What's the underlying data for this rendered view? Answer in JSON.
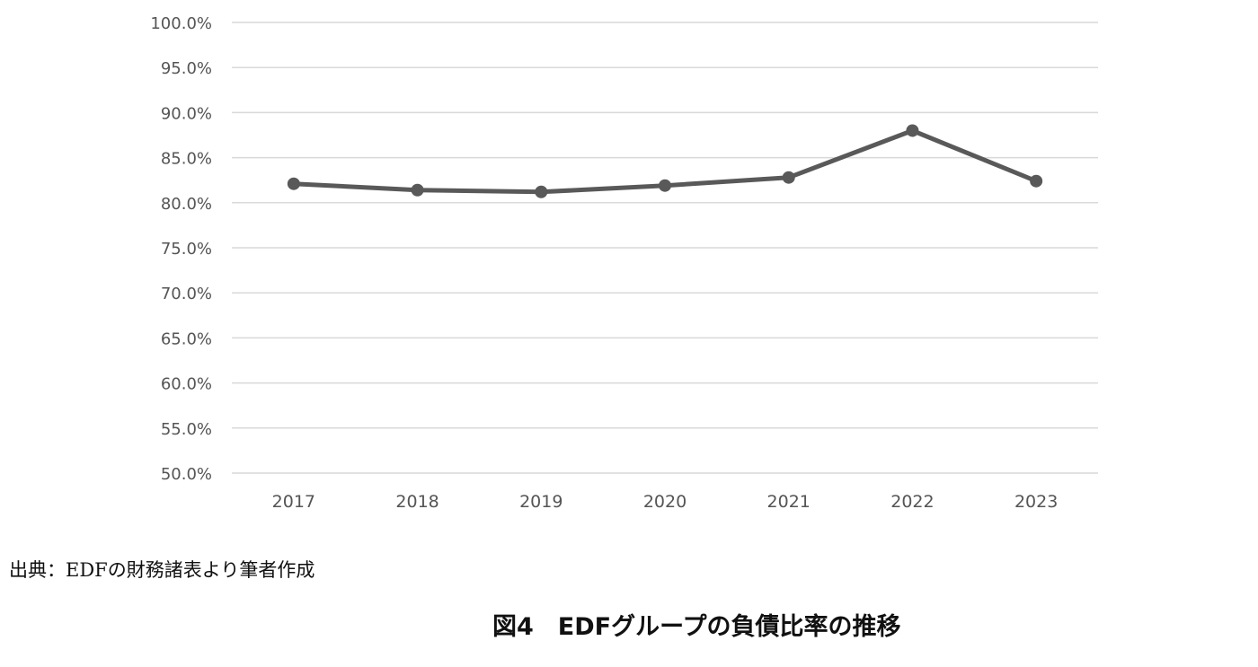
{
  "chart_data": {
    "type": "line",
    "title": "",
    "xlabel": "",
    "ylabel": "",
    "categories": [
      "2017",
      "2018",
      "2019",
      "2020",
      "2021",
      "2022",
      "2023"
    ],
    "series": [
      {
        "values": [
          82.1,
          81.4,
          81.2,
          81.9,
          82.8,
          88.0,
          82.4
        ]
      }
    ],
    "ylim": [
      50,
      100
    ],
    "y_ticks": [
      "100.0%",
      "95.0%",
      "90.0%",
      "85.0%",
      "80.0%",
      "75.0%",
      "70.0%",
      "65.0%",
      "60.0%",
      "55.0%",
      "50.0%"
    ],
    "y_tick_values": [
      100,
      95,
      90,
      85,
      80,
      75,
      70,
      65,
      60,
      55,
      50
    ],
    "grid": true,
    "legend": "none",
    "colors": {
      "line": "#595959",
      "grid": "#d9d9d9",
      "tick_text": "#555555"
    }
  },
  "source_note": "出典：EDFの財務諸表より筆者作成",
  "caption": "図4　EDFグループの負債比率の推移"
}
